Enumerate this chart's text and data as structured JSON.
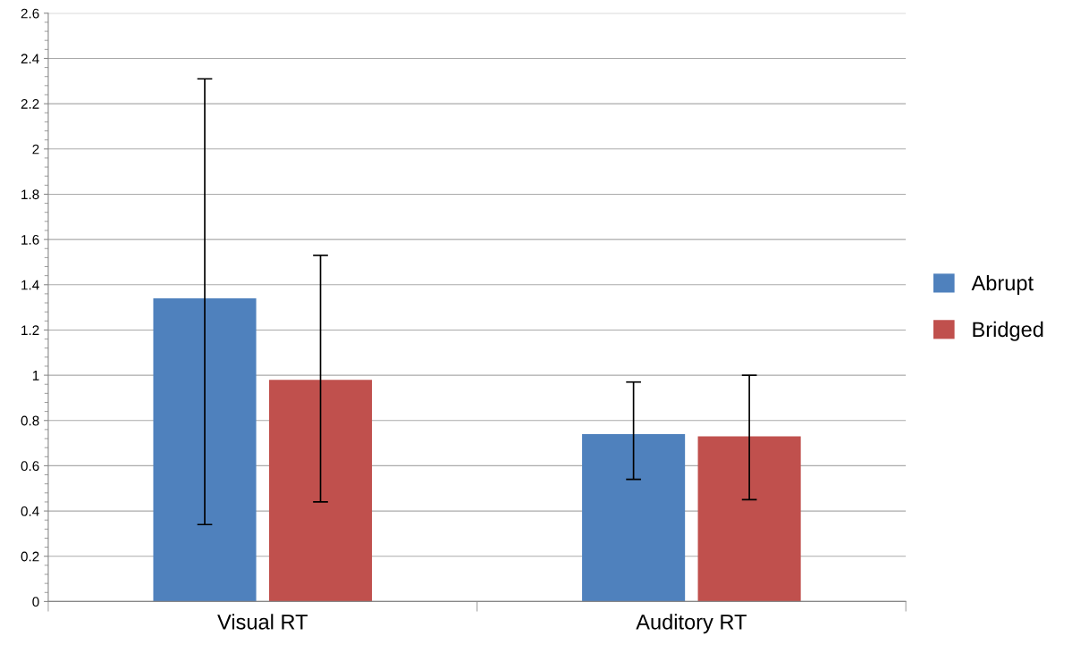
{
  "chart_data": {
    "type": "bar",
    "categories": [
      "Visual RT",
      "Auditory RT"
    ],
    "series": [
      {
        "name": "Abrupt",
        "color": "#4f81bd",
        "values": [
          1.34,
          0.74
        ],
        "errors": [
          [
            0.34,
            2.31
          ],
          [
            0.54,
            0.97
          ]
        ]
      },
      {
        "name": "Bridged",
        "color": "#c0504d",
        "values": [
          0.98,
          0.73
        ],
        "errors": [
          [
            0.44,
            1.53
          ],
          [
            0.45,
            1.0
          ]
        ]
      }
    ],
    "ylim": [
      0,
      2.6
    ],
    "yticks": [
      0,
      0.2,
      0.4,
      0.6,
      0.8,
      1,
      1.2,
      1.4,
      1.6,
      1.8,
      2,
      2.2,
      2.4,
      2.6
    ],
    "grid": "y",
    "legend": "right"
  }
}
